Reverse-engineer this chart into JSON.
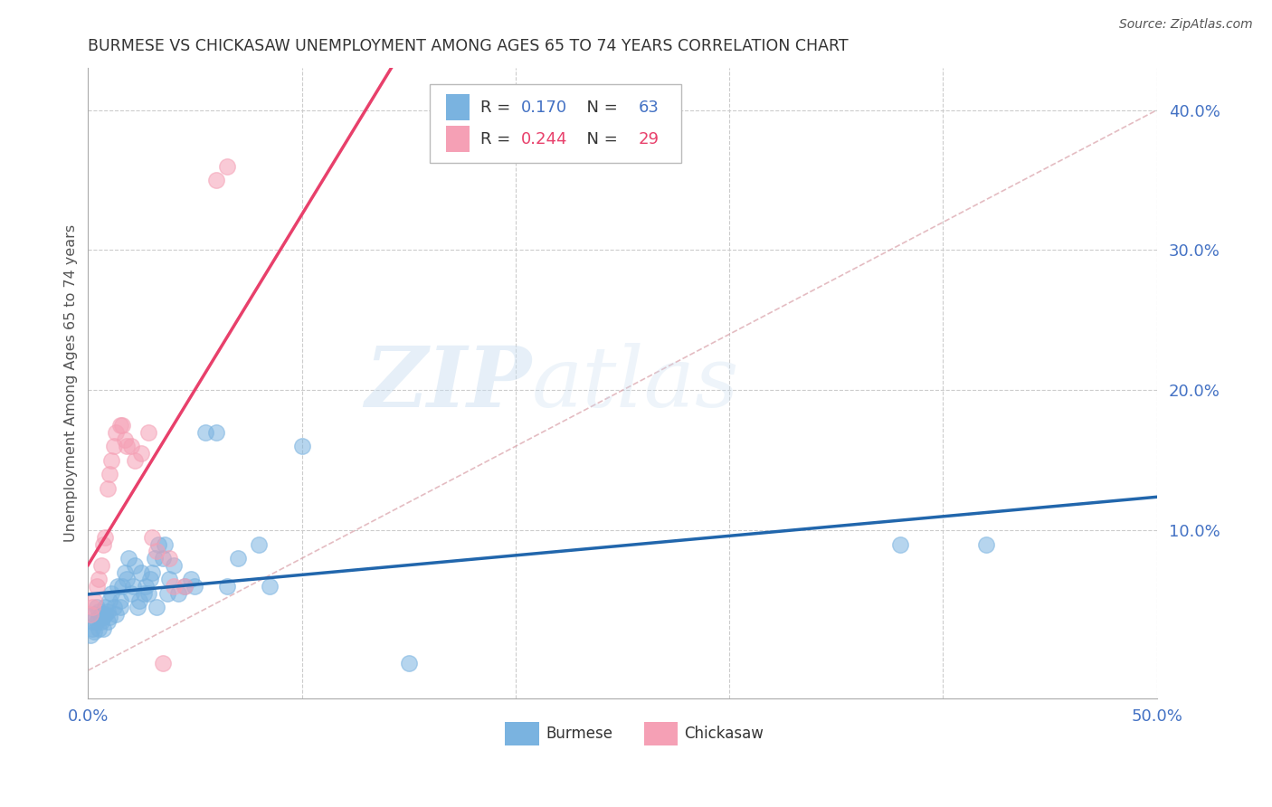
{
  "title": "BURMESE VS CHICKASAW UNEMPLOYMENT AMONG AGES 65 TO 74 YEARS CORRELATION CHART",
  "source": "Source: ZipAtlas.com",
  "ylabel": "Unemployment Among Ages 65 to 74 years",
  "xlim": [
    0.0,
    0.5
  ],
  "ylim": [
    -0.02,
    0.43
  ],
  "burmese_color": "#7ab3e0",
  "chickasaw_color": "#f5a0b5",
  "burmese_line_color": "#2166ac",
  "chickasaw_line_color": "#e8406b",
  "trend_line_color": "#d9a0a8",
  "R_burmese": 0.17,
  "N_burmese": 63,
  "R_chickasaw": 0.244,
  "N_chickasaw": 29,
  "burmese_x": [
    0.001,
    0.002,
    0.002,
    0.003,
    0.003,
    0.004,
    0.004,
    0.005,
    0.005,
    0.005,
    0.006,
    0.006,
    0.007,
    0.007,
    0.008,
    0.008,
    0.009,
    0.009,
    0.01,
    0.01,
    0.011,
    0.012,
    0.013,
    0.014,
    0.015,
    0.015,
    0.016,
    0.017,
    0.018,
    0.019,
    0.02,
    0.021,
    0.022,
    0.023,
    0.024,
    0.025,
    0.026,
    0.027,
    0.028,
    0.029,
    0.03,
    0.031,
    0.032,
    0.033,
    0.035,
    0.036,
    0.037,
    0.038,
    0.04,
    0.042,
    0.045,
    0.048,
    0.05,
    0.055,
    0.06,
    0.065,
    0.07,
    0.08,
    0.085,
    0.1,
    0.15,
    0.38,
    0.42
  ],
  "burmese_y": [
    0.025,
    0.03,
    0.035,
    0.028,
    0.04,
    0.035,
    0.045,
    0.03,
    0.038,
    0.042,
    0.035,
    0.04,
    0.03,
    0.038,
    0.04,
    0.045,
    0.035,
    0.042,
    0.05,
    0.038,
    0.055,
    0.045,
    0.04,
    0.06,
    0.045,
    0.05,
    0.06,
    0.07,
    0.065,
    0.08,
    0.055,
    0.06,
    0.075,
    0.045,
    0.05,
    0.07,
    0.055,
    0.06,
    0.055,
    0.065,
    0.07,
    0.08,
    0.045,
    0.09,
    0.08,
    0.09,
    0.055,
    0.065,
    0.075,
    0.055,
    0.06,
    0.065,
    0.06,
    0.17,
    0.17,
    0.06,
    0.08,
    0.09,
    0.06,
    0.16,
    0.005,
    0.09,
    0.09
  ],
  "chickasaw_x": [
    0.001,
    0.002,
    0.003,
    0.004,
    0.005,
    0.006,
    0.007,
    0.008,
    0.009,
    0.01,
    0.011,
    0.012,
    0.013,
    0.015,
    0.016,
    0.017,
    0.018,
    0.02,
    0.022,
    0.025,
    0.028,
    0.03,
    0.032,
    0.035,
    0.038,
    0.04,
    0.045,
    0.06,
    0.065
  ],
  "chickasaw_y": [
    0.04,
    0.045,
    0.05,
    0.06,
    0.065,
    0.075,
    0.09,
    0.095,
    0.13,
    0.14,
    0.15,
    0.16,
    0.17,
    0.175,
    0.175,
    0.165,
    0.16,
    0.16,
    0.15,
    0.155,
    0.17,
    0.095,
    0.085,
    0.005,
    0.08,
    0.06,
    0.06,
    0.35,
    0.36
  ],
  "watermark_zip": "ZIP",
  "watermark_atlas": "atlas",
  "grid_color": "#cccccc",
  "background_color": "#ffffff",
  "tick_color": "#4472c4",
  "label_color": "#555555"
}
